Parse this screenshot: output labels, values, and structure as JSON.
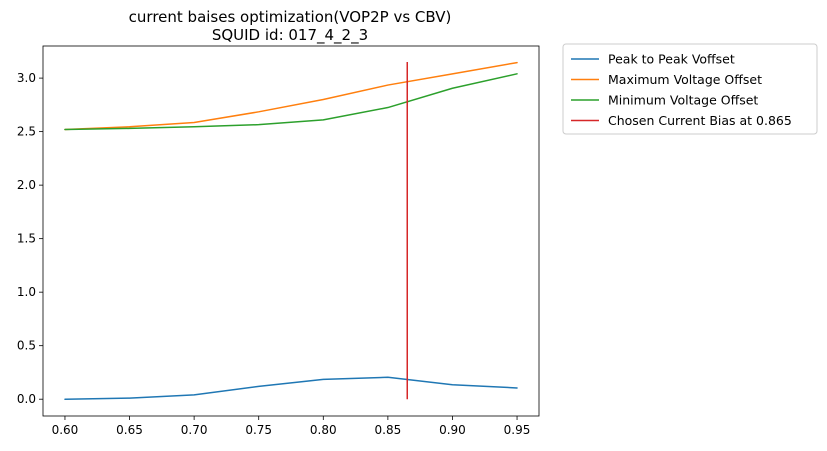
{
  "chart_data": {
    "type": "line",
    "title_lines": [
      "current baises optimization(VOP2P vs CBV)",
      "SQUID id: 017_4_2_3"
    ],
    "xlabel": "",
    "ylabel": "",
    "x": [
      0.6,
      0.65,
      0.7,
      0.75,
      0.8,
      0.85,
      0.9,
      0.95
    ],
    "xlim": [
      0.583,
      0.967
    ],
    "ylim": [
      -0.157,
      3.3
    ],
    "x_ticks": [
      0.6,
      0.65,
      0.7,
      0.75,
      0.8,
      0.85,
      0.9,
      0.95
    ],
    "x_tick_labels": [
      "0.60",
      "0.65",
      "0.70",
      "0.75",
      "0.80",
      "0.85",
      "0.90",
      "0.95"
    ],
    "y_ticks": [
      0.0,
      0.5,
      1.0,
      1.5,
      2.0,
      2.5,
      3.0
    ],
    "y_tick_labels": [
      "0.0",
      "0.5",
      "1.0",
      "1.5",
      "2.0",
      "2.5",
      "3.0"
    ],
    "grid": false,
    "legend_position": "outside-top-right",
    "series": [
      {
        "name": "Peak to Peak Voffset",
        "color": "#1f77b4",
        "values": [
          0.0,
          0.01,
          0.04,
          0.12,
          0.185,
          0.205,
          0.135,
          0.105
        ]
      },
      {
        "name": "Maximum Voltage Offset",
        "color": "#ff7f0e",
        "values": [
          2.52,
          2.545,
          2.585,
          2.685,
          2.8,
          2.935,
          3.04,
          3.145
        ]
      },
      {
        "name": "Minimum Voltage Offset",
        "color": "#2ca02c",
        "values": [
          2.52,
          2.53,
          2.545,
          2.565,
          2.61,
          2.725,
          2.905,
          3.04
        ]
      },
      {
        "name": "Chosen Current Bias at 0.865",
        "color": "#d62728",
        "type": "vline",
        "x": 0.865,
        "y_range": [
          0.0,
          3.15
        ]
      }
    ]
  }
}
